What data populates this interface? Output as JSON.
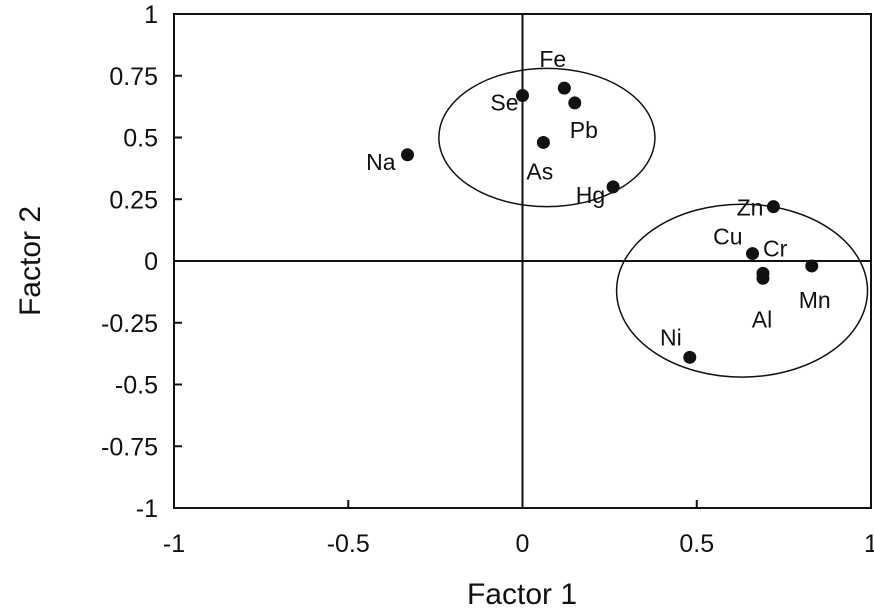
{
  "chart_data": {
    "type": "scatter",
    "xlabel": "Factor 1",
    "ylabel": "Factor 2",
    "xlim": [
      -1,
      1
    ],
    "ylim": [
      -1,
      1
    ],
    "grid": false,
    "x_ticks": [
      "-1",
      "-0.5",
      "0",
      "0.5",
      "1"
    ],
    "y_ticks": [
      "1",
      "0.75",
      "0.5",
      "0.25",
      "0",
      "-0.25",
      "-0.5",
      "-0.75",
      "-1"
    ],
    "points": [
      {
        "label": "Na",
        "x": -0.33,
        "y": 0.43
      },
      {
        "label": "Se",
        "x": 0.0,
        "y": 0.67
      },
      {
        "label": "Fe",
        "x": 0.12,
        "y": 0.7
      },
      {
        "label": "Pb",
        "x": 0.15,
        "y": 0.64
      },
      {
        "label": "As",
        "x": 0.06,
        "y": 0.48
      },
      {
        "label": "Hg",
        "x": 0.26,
        "y": 0.3
      },
      {
        "label": "Zn",
        "x": 0.72,
        "y": 0.22
      },
      {
        "label": "Cu",
        "x": 0.66,
        "y": 0.03
      },
      {
        "label": "Cr",
        "x": 0.69,
        "y": -0.05
      },
      {
        "label": "Al",
        "x": 0.69,
        "y": -0.07
      },
      {
        "label": "Mn",
        "x": 0.83,
        "y": -0.02
      },
      {
        "label": "Ni",
        "x": 0.48,
        "y": -0.39
      }
    ],
    "clusters": [
      {
        "cx": 0.07,
        "cy": 0.5,
        "rx": 0.31,
        "ry": 0.28
      },
      {
        "cx": 0.63,
        "cy": -0.12,
        "rx": 0.36,
        "ry": 0.35
      }
    ]
  },
  "colors": {
    "ink": "#111111",
    "background": "#ffffff"
  }
}
